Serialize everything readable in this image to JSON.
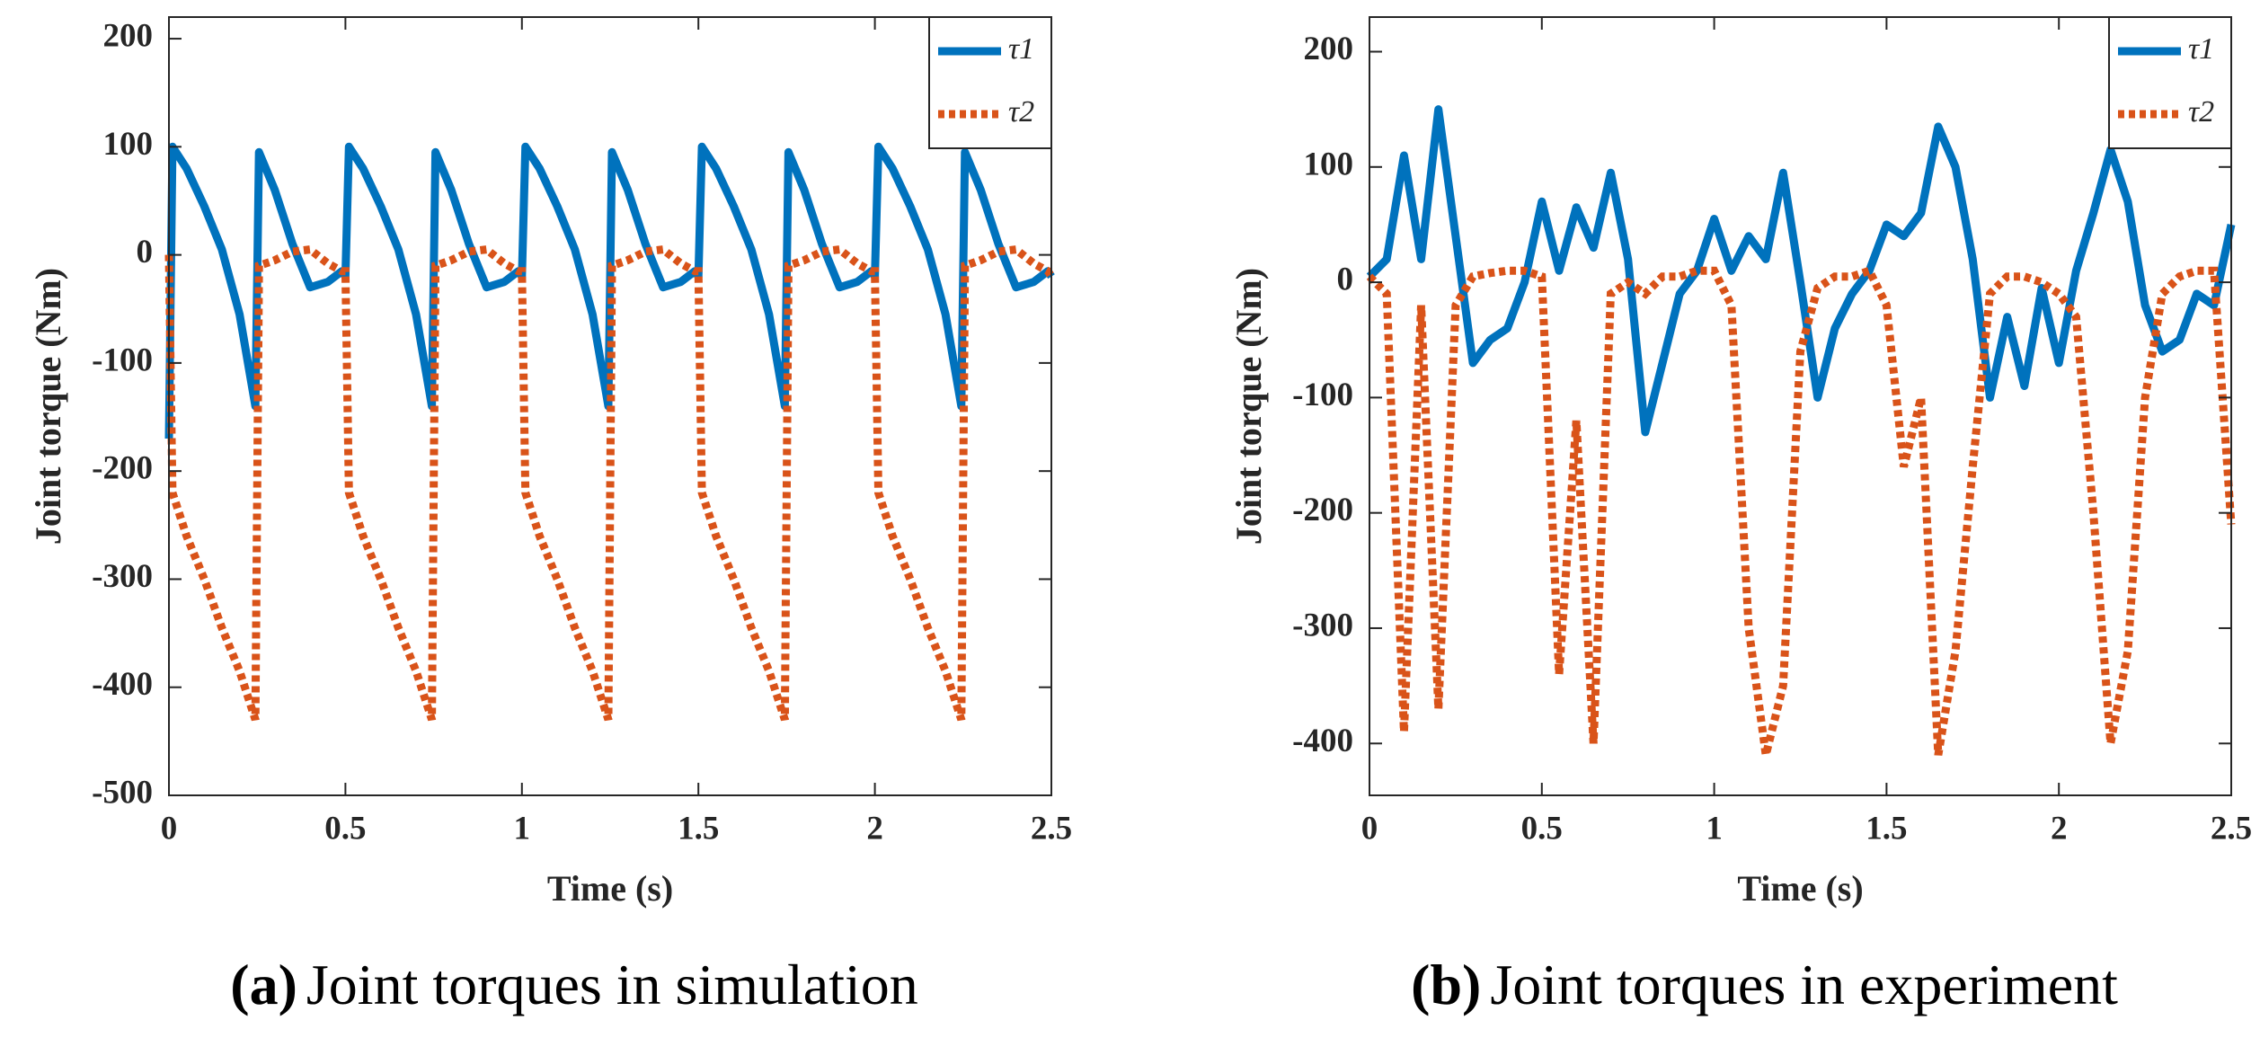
{
  "chart_data": [
    {
      "type": "line",
      "caption": "(a)",
      "title": "Joint torques in simulation",
      "xlabel": "Time (s)",
      "ylabel": "Joint torque (Nm)",
      "x": [
        0,
        0.01,
        0.05,
        0.1,
        0.15,
        0.2,
        0.245,
        0.255,
        0.3,
        0.35,
        0.4,
        0.45,
        0.49,
        0.5,
        0.51,
        0.55,
        0.6,
        0.65,
        0.7,
        0.745,
        0.755,
        0.8,
        0.85,
        0.9,
        0.95,
        0.99,
        1,
        1.01,
        1.05,
        1.1,
        1.15,
        1.2,
        1.245,
        1.255,
        1.3,
        1.35,
        1.4,
        1.45,
        1.49,
        1.5,
        1.51,
        1.55,
        1.6,
        1.65,
        1.7,
        1.745,
        1.755,
        1.8,
        1.85,
        1.9,
        1.95,
        1.99,
        2,
        2.01,
        2.05,
        2.1,
        2.15,
        2.2,
        2.245,
        2.255,
        2.3,
        2.35,
        2.4,
        2.45,
        2.49,
        2.5
      ],
      "series": [
        {
          "name": "τ1",
          "color": "#0072bd",
          "line_style": "solid",
          "values": [
            -170,
            100,
            80,
            45,
            5,
            -55,
            -140,
            95,
            60,
            10,
            -30,
            -25,
            -15,
            -20,
            100,
            80,
            45,
            5,
            -55,
            -140,
            95,
            60,
            10,
            -30,
            -25,
            -15,
            -20,
            100,
            80,
            45,
            5,
            -55,
            -140,
            95,
            60,
            10,
            -30,
            -25,
            -15,
            -20,
            100,
            80,
            45,
            5,
            -55,
            -140,
            95,
            60,
            10,
            -30,
            -25,
            -15,
            -20,
            100,
            80,
            45,
            5,
            -55,
            -140,
            95,
            60,
            10,
            -30,
            -25,
            -15,
            -20
          ]
        },
        {
          "name": "τ2",
          "color": "#d95319",
          "line_style": "dotted",
          "values": [
            0,
            -220,
            -260,
            -300,
            -345,
            -385,
            -430,
            -10,
            -5,
            3,
            5,
            -8,
            -15,
            -15,
            -220,
            -260,
            -300,
            -345,
            -385,
            -430,
            -10,
            -5,
            3,
            5,
            -8,
            -15,
            -15,
            -220,
            -260,
            -300,
            -345,
            -385,
            -430,
            -10,
            -5,
            3,
            5,
            -8,
            -15,
            -15,
            -220,
            -260,
            -300,
            -345,
            -385,
            -430,
            -10,
            -5,
            3,
            5,
            -8,
            -15,
            -15,
            -220,
            -260,
            -300,
            -345,
            -385,
            -430,
            -10,
            -5,
            3,
            5,
            -8,
            -15,
            -20
          ]
        }
      ],
      "xlim": [
        0,
        2.5
      ],
      "xticks": [
        0,
        0.5,
        1,
        1.5,
        2,
        2.5
      ],
      "ylim": [
        -500,
        220
      ],
      "yticks": [
        -500,
        -400,
        -300,
        -200,
        -100,
        0,
        100,
        200
      ],
      "legend": "upper right",
      "grid": false
    },
    {
      "type": "line",
      "caption": "(b)",
      "title": "Joint torques in experiment",
      "xlabel": "Time (s)",
      "ylabel": "Joint torque (Nm)",
      "x": [
        0,
        0.05,
        0.1,
        0.15,
        0.2,
        0.25,
        0.3,
        0.35,
        0.4,
        0.45,
        0.5,
        0.55,
        0.6,
        0.65,
        0.7,
        0.75,
        0.8,
        0.85,
        0.9,
        0.95,
        1,
        1.05,
        1.1,
        1.15,
        1.2,
        1.25,
        1.3,
        1.35,
        1.4,
        1.45,
        1.5,
        1.55,
        1.6,
        1.65,
        1.7,
        1.75,
        1.8,
        1.85,
        1.9,
        1.95,
        2,
        2.05,
        2.1,
        2.15,
        2.2,
        2.25,
        2.3,
        2.35,
        2.4,
        2.45,
        2.5
      ],
      "series": [
        {
          "name": "τ1",
          "color": "#0072bd",
          "line_style": "solid",
          "values": [
            5,
            20,
            110,
            20,
            150,
            40,
            -70,
            -50,
            -40,
            0,
            70,
            10,
            65,
            30,
            95,
            20,
            -130,
            -70,
            -10,
            10,
            55,
            10,
            40,
            20,
            95,
            0,
            -100,
            -40,
            -10,
            10,
            50,
            40,
            60,
            135,
            100,
            20,
            -100,
            -30,
            -90,
            -5,
            -70,
            10,
            60,
            115,
            70,
            -20,
            -60,
            -50,
            -10,
            -20,
            50
          ]
        },
        {
          "name": "τ2",
          "color": "#d95319",
          "line_style": "dotted",
          "values": [
            5,
            -10,
            -390,
            -20,
            -370,
            -20,
            5,
            8,
            10,
            10,
            5,
            -340,
            -120,
            -400,
            -10,
            0,
            -10,
            5,
            5,
            10,
            10,
            -20,
            -300,
            -410,
            -350,
            -60,
            -5,
            5,
            5,
            10,
            -20,
            -160,
            -100,
            -410,
            -320,
            -160,
            -10,
            5,
            5,
            0,
            -10,
            -30,
            -200,
            -400,
            -320,
            -100,
            -10,
            5,
            10,
            10,
            -210
          ]
        }
      ],
      "xlim": [
        0,
        2.5
      ],
      "xticks": [
        0,
        0.5,
        1,
        1.5,
        2,
        2.5
      ],
      "ylim": [
        -445,
        230
      ],
      "yticks": [
        -400,
        -300,
        -200,
        -100,
        0,
        100,
        200
      ],
      "legend": "upper right",
      "grid": false
    }
  ]
}
